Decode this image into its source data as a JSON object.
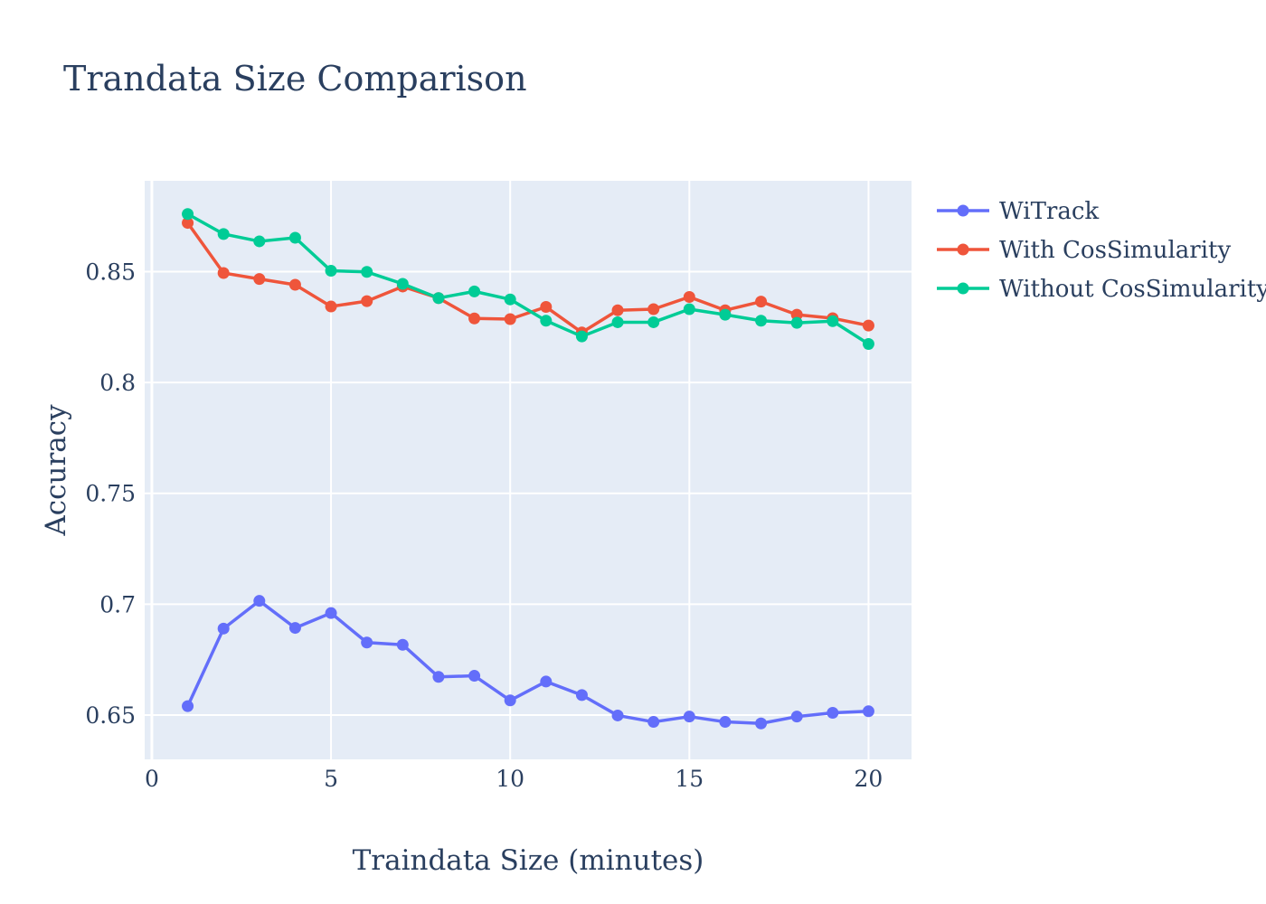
{
  "chart_data": {
    "type": "line",
    "title": "Trandata Size Comparison",
    "xlabel": "Traindata Size (minutes)",
    "ylabel": "Accuracy",
    "xlim": [
      -0.2,
      21.2
    ],
    "ylim": [
      0.63,
      0.891
    ],
    "xticks": [
      0,
      5,
      10,
      15,
      20
    ],
    "xtick_labels": [
      "0",
      "5",
      "10",
      "15",
      "20"
    ],
    "yticks": [
      0.65,
      0.7,
      0.75,
      0.8,
      0.85
    ],
    "ytick_labels": [
      "0.65",
      "0.7",
      "0.75",
      "0.8",
      "0.85"
    ],
    "grid": true,
    "legend_position": "top-right outside",
    "x": [
      1,
      2,
      3,
      4,
      5,
      6,
      7,
      8,
      9,
      10,
      11,
      12,
      13,
      14,
      15,
      16,
      17,
      18,
      19,
      20
    ],
    "series": [
      {
        "name": "WiTrack",
        "color": "#636efa",
        "values": [
          0.654,
          0.689,
          0.7015,
          0.6893,
          0.696,
          0.6827,
          0.6817,
          0.6672,
          0.6677,
          0.6566,
          0.6651,
          0.659,
          0.6498,
          0.6469,
          0.6493,
          0.6469,
          0.6462,
          0.6493,
          0.651,
          0.6517
        ]
      },
      {
        "name": "With CosSimularity",
        "color": "#ef553b",
        "values": [
          0.872,
          0.8494,
          0.8467,
          0.8441,
          0.8343,
          0.8367,
          0.8433,
          0.8381,
          0.8289,
          0.8286,
          0.8341,
          0.8226,
          0.8326,
          0.8331,
          0.8386,
          0.8326,
          0.8365,
          0.8306,
          0.829,
          0.8257
        ]
      },
      {
        "name": "Without CosSimularity",
        "color": "#00cc96",
        "values": [
          0.876,
          0.867,
          0.8637,
          0.8653,
          0.8504,
          0.8499,
          0.8445,
          0.8381,
          0.8411,
          0.8375,
          0.8279,
          0.8208,
          0.8272,
          0.8272,
          0.8331,
          0.8306,
          0.8279,
          0.8269,
          0.8277,
          0.8174
        ]
      }
    ]
  }
}
